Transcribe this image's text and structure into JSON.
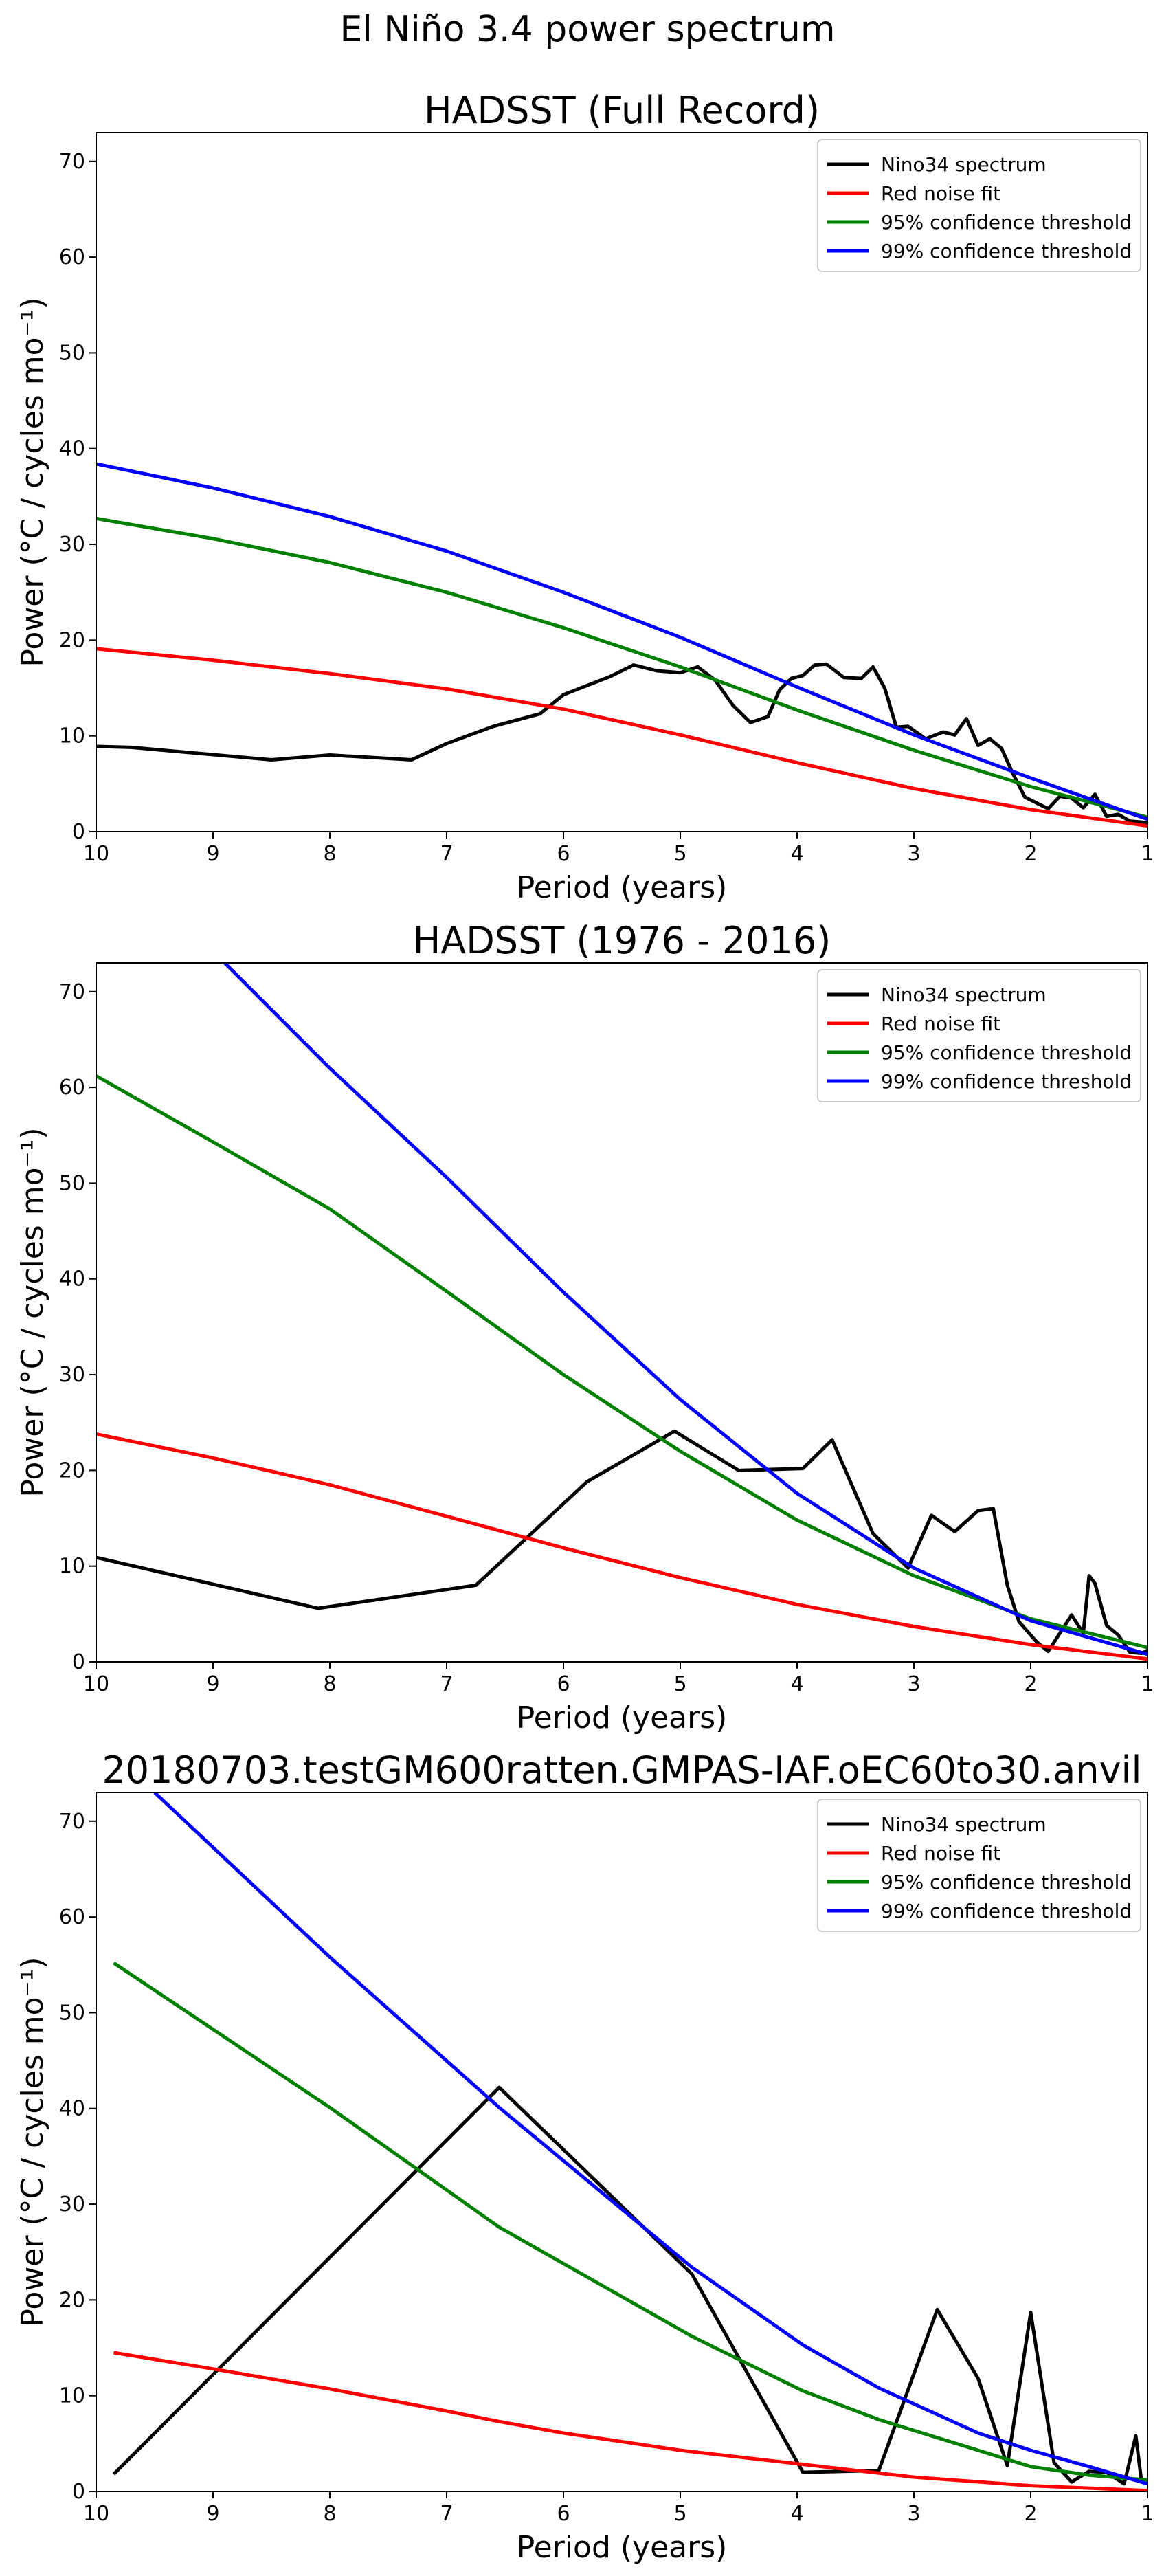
{
  "suptitle": "El Niño 3.4 power spectrum",
  "colors": {
    "spectrum": "#000000",
    "red_noise": "#ff0000",
    "conf95": "#008000",
    "conf99": "#0000ff"
  },
  "chart_data": [
    {
      "type": "line",
      "title": "HADSST (Full Record)",
      "xlabel": "Period (years)",
      "ylabel": "Power (°C / cycles mo⁻¹)",
      "xlim": [
        10,
        1
      ],
      "ylim": [
        0,
        73
      ],
      "xticks": [
        10,
        9,
        8,
        7,
        6,
        5,
        4,
        3,
        2,
        1
      ],
      "yticks": [
        0,
        10,
        20,
        30,
        40,
        50,
        60,
        70
      ],
      "legend": "top-right",
      "series": [
        {
          "name": "Nino34 spectrum",
          "color": "#000000",
          "x": [
            10,
            9.7,
            8.5,
            8.0,
            7.3,
            7.0,
            6.6,
            6.2,
            6.0,
            5.6,
            5.4,
            5.2,
            5.0,
            4.85,
            4.7,
            4.55,
            4.4,
            4.25,
            4.15,
            4.05,
            3.95,
            3.85,
            3.75,
            3.6,
            3.45,
            3.35,
            3.25,
            3.15,
            3.05,
            2.9,
            2.75,
            2.65,
            2.55,
            2.45,
            2.35,
            2.25,
            2.15,
            2.05,
            1.95,
            1.85,
            1.75,
            1.65,
            1.55,
            1.45,
            1.35,
            1.25,
            1.15,
            1.05,
            1.0
          ],
          "y": [
            8.9,
            8.8,
            7.5,
            8.0,
            7.5,
            9.2,
            11.0,
            12.3,
            14.3,
            16.2,
            17.4,
            16.8,
            16.6,
            17.2,
            15.8,
            13.2,
            11.4,
            12.0,
            14.8,
            16.0,
            16.3,
            17.4,
            17.5,
            16.1,
            16.0,
            17.2,
            15.0,
            10.9,
            11.0,
            9.7,
            10.4,
            10.1,
            11.8,
            9.0,
            9.7,
            8.7,
            6.0,
            3.6,
            3.0,
            2.4,
            3.7,
            3.5,
            2.5,
            3.9,
            1.6,
            1.8,
            1.1,
            1.0,
            0.9
          ]
        },
        {
          "name": "Red noise fit",
          "color": "#ff0000",
          "x": [
            10,
            9,
            8,
            7,
            6,
            5,
            4,
            3,
            2,
            1
          ],
          "y": [
            19.1,
            17.9,
            16.5,
            14.9,
            12.8,
            10.1,
            7.2,
            4.5,
            2.3,
            0.6
          ]
        },
        {
          "name": "95% confidence threshold",
          "color": "#008000",
          "x": [
            10,
            9,
            8,
            7,
            6,
            5,
            4,
            3,
            2,
            1
          ],
          "y": [
            32.7,
            30.6,
            28.1,
            25.0,
            21.3,
            17.2,
            12.7,
            8.5,
            4.7,
            1.5
          ]
        },
        {
          "name": "99% confidence threshold",
          "color": "#0000ff",
          "x": [
            10,
            9,
            8,
            7,
            6,
            5,
            4,
            3,
            2,
            1
          ],
          "y": [
            38.4,
            35.9,
            32.9,
            29.3,
            25.0,
            20.3,
            15.1,
            10.1,
            5.6,
            1.3
          ]
        }
      ]
    },
    {
      "type": "line",
      "title": "HADSST (1976 - 2016)",
      "xlabel": "Period (years)",
      "ylabel": "Power (°C / cycles mo⁻¹)",
      "xlim": [
        10,
        1
      ],
      "ylim": [
        0,
        73
      ],
      "xticks": [
        10,
        9,
        8,
        7,
        6,
        5,
        4,
        3,
        2,
        1
      ],
      "yticks": [
        0,
        10,
        20,
        30,
        40,
        50,
        60,
        70
      ],
      "legend": "top-right",
      "series": [
        {
          "name": "Nino34 spectrum",
          "color": "#000000",
          "x": [
            10,
            8.1,
            6.75,
            5.8,
            5.05,
            4.5,
            3.95,
            3.7,
            3.35,
            3.05,
            2.85,
            2.65,
            2.45,
            2.32,
            2.2,
            2.1,
            1.95,
            1.85,
            1.75,
            1.65,
            1.55,
            1.5,
            1.45,
            1.35,
            1.25,
            1.15,
            1.05,
            1.0
          ],
          "y": [
            10.9,
            5.6,
            8.0,
            18.8,
            24.1,
            20.0,
            20.2,
            23.2,
            13.4,
            9.8,
            15.3,
            13.6,
            15.8,
            16.0,
            8.0,
            4.2,
            2.1,
            1.1,
            3.0,
            4.9,
            3.0,
            9.0,
            8.2,
            3.8,
            2.8,
            1.0,
            0.9,
            1.2
          ]
        },
        {
          "name": "Red noise fit",
          "color": "#ff0000",
          "x": [
            10,
            9,
            8,
            7,
            6,
            5,
            4,
            3,
            2,
            1
          ],
          "y": [
            23.8,
            21.3,
            18.5,
            15.2,
            11.9,
            8.8,
            6.0,
            3.7,
            1.8,
            0.3
          ]
        },
        {
          "name": "95% confidence threshold",
          "color": "#008000",
          "x": [
            10,
            9,
            8,
            7,
            6,
            5,
            4,
            3,
            2,
            1
          ],
          "y": [
            61.2,
            54.3,
            47.3,
            38.7,
            30.0,
            22.0,
            14.8,
            9.0,
            4.5,
            1.5
          ]
        },
        {
          "name": "99% confidence threshold",
          "color": "#0000ff",
          "x": [
            8.9,
            8,
            7,
            6,
            5,
            4,
            3,
            2,
            1
          ],
          "y": [
            73.0,
            62.0,
            50.6,
            38.6,
            27.4,
            17.6,
            9.8,
            4.3,
            0.8
          ]
        }
      ]
    },
    {
      "type": "line",
      "title": "20180703.testGM600ratten.GMPAS-IAF.oEC60to30.anvil",
      "xlabel": "Period (years)",
      "ylabel": "Power (°C / cycles mo⁻¹)",
      "xlim": [
        10,
        1
      ],
      "ylim": [
        0,
        73
      ],
      "xticks": [
        10,
        9,
        8,
        7,
        6,
        5,
        4,
        3,
        2,
        1
      ],
      "yticks": [
        0,
        10,
        20,
        30,
        40,
        50,
        60,
        70
      ],
      "legend": "top-right",
      "series": [
        {
          "name": "Nino34 spectrum",
          "color": "#000000",
          "x": [
            9.85,
            6.55,
            4.9,
            3.95,
            3.3,
            2.8,
            2.45,
            2.2,
            2.0,
            1.8,
            1.65,
            1.5,
            1.35,
            1.2,
            1.1,
            1.05
          ],
          "y": [
            1.8,
            42.2,
            22.7,
            2.0,
            2.2,
            19.0,
            11.8,
            2.7,
            18.7,
            3.0,
            1.0,
            2.1,
            2.0,
            0.8,
            5.8,
            0.9
          ]
        },
        {
          "name": "Red noise fit",
          "color": "#ff0000",
          "x": [
            9.85,
            9,
            8,
            7,
            6.55,
            6,
            5,
            4,
            3,
            2,
            1
          ],
          "y": [
            14.5,
            12.8,
            10.7,
            8.4,
            7.3,
            6.1,
            4.3,
            2.9,
            1.5,
            0.6,
            0.1
          ]
        },
        {
          "name": "95% confidence threshold",
          "color": "#008000",
          "x": [
            9.85,
            8,
            6.55,
            4.9,
            3.95,
            3.3,
            2.45,
            2.0,
            1.5,
            1.0
          ],
          "y": [
            55.2,
            40.1,
            27.6,
            16.2,
            10.5,
            7.5,
            4.3,
            2.6,
            1.7,
            1.2
          ]
        },
        {
          "name": "99% confidence threshold",
          "color": "#0000ff",
          "x": [
            9.5,
            8,
            6.55,
            4.9,
            3.95,
            3.3,
            2.45,
            2.0,
            1.5,
            1.0
          ],
          "y": [
            73.0,
            55.8,
            40.1,
            23.4,
            15.3,
            10.8,
            6.1,
            4.3,
            2.6,
            0.8
          ]
        }
      ]
    }
  ]
}
